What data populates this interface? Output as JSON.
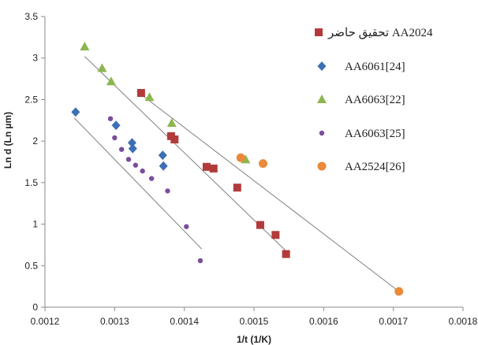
{
  "chart_data": {
    "type": "scatter",
    "title": "",
    "xlabel": "1/t (1/K)",
    "ylabel": "Ln d (Ln µm)",
    "xlim": [
      0.0012,
      0.0018
    ],
    "ylim": [
      0,
      3.5
    ],
    "x_ticks": [
      "0.0012",
      "0.0013",
      "0.0014",
      "0.0015",
      "0.0016",
      "0.0017",
      "0.0018"
    ],
    "y_ticks": [
      "0",
      "0.5",
      "1",
      "1.5",
      "2",
      "2.5",
      "3",
      "3.5"
    ],
    "grid": false,
    "legend_position": "right",
    "series": [
      {
        "name": "تحقيق حاضر AA2024",
        "marker": "square",
        "color": "#b33a3a",
        "x": [
          0.001338,
          0.001381,
          0.001386,
          0.001432,
          0.001442,
          0.001476,
          0.001509,
          0.001531,
          0.001546
        ],
        "y": [
          2.58,
          2.06,
          2.02,
          1.69,
          1.67,
          1.44,
          0.99,
          0.87,
          0.64
        ]
      },
      {
        "name": "AA6061[24]",
        "marker": "diamond",
        "color": "#3d6fb4",
        "x": [
          0.001244,
          0.001302,
          0.001325,
          0.001326,
          0.001369,
          0.00137
        ],
        "y": [
          2.35,
          2.19,
          1.98,
          1.91,
          1.83,
          1.7
        ]
      },
      {
        "name": "AA6063[22]",
        "marker": "triangle",
        "color": "#8db650",
        "x": [
          0.001257,
          0.001282,
          0.001295,
          0.00135,
          0.001382,
          0.001488
        ],
        "y": [
          3.14,
          2.88,
          2.72,
          2.53,
          2.22,
          1.78
        ]
      },
      {
        "name": "AA6063[25]",
        "marker": "circle-small",
        "color": "#7a4e9b",
        "x": [
          0.001294,
          0.0013,
          0.00131,
          0.00132,
          0.00133,
          0.00134,
          0.001353,
          0.001376,
          0.001403,
          0.001423
        ],
        "y": [
          2.27,
          2.04,
          1.9,
          1.78,
          1.71,
          1.64,
          1.55,
          1.4,
          0.97,
          0.56
        ]
      },
      {
        "name": "AA2524[26]",
        "marker": "circle",
        "color": "#ea8a3a",
        "x": [
          0.001481,
          0.001513,
          0.001708
        ],
        "y": [
          1.8,
          1.73,
          0.19
        ]
      }
    ],
    "trendlines": [
      {
        "x": [
          0.001242,
          0.001425
        ],
        "y": [
          2.28,
          0.7
        ]
      },
      {
        "x": [
          0.001257,
          0.001548
        ],
        "y": [
          3.02,
          0.66
        ]
      },
      {
        "x": [
          0.001332,
          0.001708
        ],
        "y": [
          2.6,
          0.19
        ]
      }
    ],
    "line_color": "#7f7f7f",
    "axis_color": "#8a8a8a"
  }
}
